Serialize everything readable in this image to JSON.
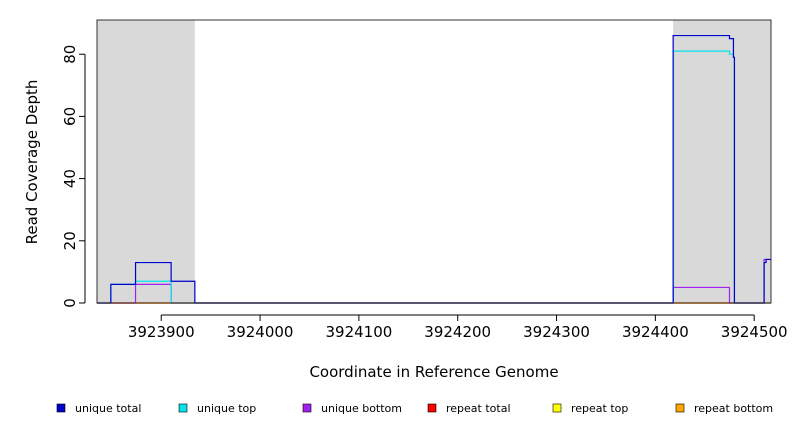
{
  "chart_data": {
    "type": "line",
    "title": "",
    "xlabel": "Coordinate in Reference Genome",
    "ylabel": "Read Coverage Depth",
    "xlim": [
      3923835,
      3924517
    ],
    "ylim": [
      0,
      91
    ],
    "x_ticks": [
      3923900,
      3924000,
      3924100,
      3924200,
      3924300,
      3924400,
      3924500
    ],
    "y_ticks": [
      0,
      20,
      40,
      60,
      80
    ],
    "grid": false,
    "legend_position": "bottom",
    "shaded_regions": [
      {
        "x_start": 3923835,
        "x_end": 3923934,
        "color": "#d9d9d9"
      },
      {
        "x_start": 3924418,
        "x_end": 3924517,
        "color": "#d9d9d9"
      }
    ],
    "series": [
      {
        "name": "unique total",
        "color": "#0000cd",
        "x": [
          3923835,
          3923849,
          3923849,
          3923874,
          3923874,
          3923910,
          3923910,
          3923934,
          3923934,
          3924418,
          3924418,
          3924475,
          3924475,
          3924479,
          3924479,
          3924480,
          3924480,
          3924510,
          3924510,
          3924512,
          3924512,
          3924517
        ],
        "y": [
          0,
          0,
          6,
          6,
          13,
          13,
          7,
          7,
          0,
          0,
          86,
          86,
          85,
          85,
          79,
          79,
          0,
          0,
          13,
          13,
          14,
          14
        ]
      },
      {
        "name": "unique top",
        "color": "#00e5ee",
        "x": [
          3923835,
          3923849,
          3923849,
          3923874,
          3923874,
          3923910,
          3923910,
          3923934,
          3923934,
          3924418,
          3924418,
          3924475,
          3924475,
          3924479,
          3924479,
          3924480,
          3924480,
          3924517
        ],
        "y": [
          0,
          0,
          6,
          6,
          7,
          7,
          0,
          0,
          0,
          0,
          81,
          81,
          80,
          80,
          79,
          79,
          0,
          0
        ]
      },
      {
        "name": "unique bottom",
        "color": "#a020f0",
        "x": [
          3923835,
          3923874,
          3923874,
          3923910,
          3923910,
          3924418,
          3924418,
          3924475,
          3924475,
          3924510,
          3924510,
          3924517
        ],
        "y": [
          0,
          0,
          6,
          6,
          0,
          0,
          5,
          5,
          0,
          0,
          14,
          14
        ]
      },
      {
        "name": "repeat total",
        "color": "#ff0000",
        "x": [
          3923835,
          3924517
        ],
        "y": [
          0,
          0
        ]
      },
      {
        "name": "repeat top",
        "color": "#ffff00",
        "x": [
          3923835,
          3924517
        ],
        "y": [
          0,
          0
        ]
      },
      {
        "name": "repeat bottom",
        "color": "#ffa500",
        "x": [
          3923835,
          3924517
        ],
        "y": [
          0,
          0
        ]
      }
    ]
  }
}
